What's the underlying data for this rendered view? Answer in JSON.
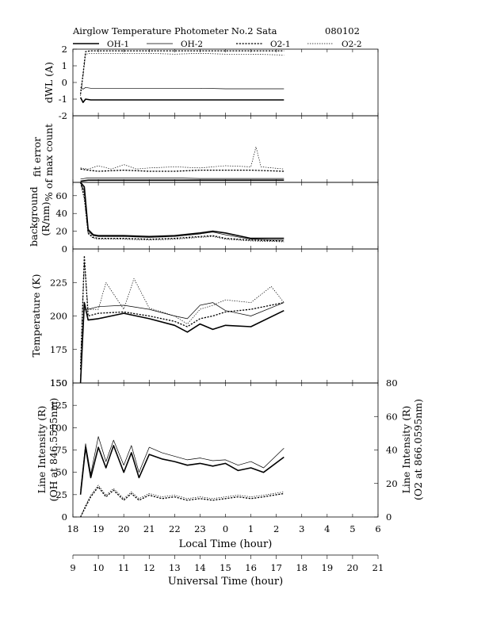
{
  "header": {
    "title": "Airglow Temperature Photometer No.2  Sata",
    "date": "080102"
  },
  "legend": [
    {
      "name": "OH-1",
      "style": "thick-solid"
    },
    {
      "name": "OH-2",
      "style": "thin-solid"
    },
    {
      "name": "O2-1",
      "style": "thick-dotted"
    },
    {
      "name": "O2-2",
      "style": "thin-dotted"
    }
  ],
  "axes": {
    "local_label": "Local Time (hour)",
    "local_ticks": [
      "18",
      "19",
      "20",
      "21",
      "22",
      "23",
      "0",
      "1",
      "2",
      "3",
      "4",
      "5",
      "6"
    ],
    "ut_label": "Universal Time (hour)",
    "ut_ticks": [
      "9",
      "10",
      "11",
      "12",
      "13",
      "14",
      "15",
      "16",
      "17",
      "18",
      "19",
      "20",
      "21"
    ]
  },
  "chart_data": [
    {
      "type": "line",
      "panel": "dwl",
      "ylabel": "dWL (A)",
      "ylim": [
        -2,
        2
      ],
      "yticks": [
        "-2",
        "-1",
        "0",
        "1",
        "2"
      ],
      "series": [
        {
          "name": "OH-1",
          "x": [
            9.3,
            9.4,
            9.5,
            9.7,
            10,
            11,
            12,
            13,
            14,
            15,
            16,
            17.3
          ],
          "y": [
            -0.9,
            -1.2,
            -1.0,
            -1.05,
            -1.05,
            -1.05,
            -1.05,
            -1.05,
            -1.05,
            -1.05,
            -1.05,
            -1.05
          ]
        },
        {
          "name": "OH-2",
          "x": [
            9.3,
            9.4,
            9.5,
            9.7,
            10,
            11,
            12,
            13,
            14,
            15,
            16,
            17.3
          ],
          "y": [
            -0.3,
            -0.4,
            -0.3,
            -0.35,
            -0.35,
            -0.35,
            -0.35,
            -0.35,
            -0.35,
            -0.38,
            -0.38,
            -0.38
          ]
        },
        {
          "name": "O2-1",
          "x": [
            9.3,
            9.4,
            9.5,
            9.7,
            10,
            11,
            12,
            13,
            14,
            15,
            16,
            17.3
          ],
          "y": [
            -0.7,
            0.5,
            1.85,
            1.9,
            1.9,
            1.9,
            1.9,
            1.9,
            1.9,
            1.9,
            1.9,
            1.9
          ]
        },
        {
          "name": "O2-2",
          "x": [
            9.3,
            9.4,
            9.5,
            9.7,
            10,
            11,
            12,
            13,
            14,
            15,
            16,
            17.3
          ],
          "y": [
            -0.8,
            0.4,
            1.7,
            1.75,
            1.75,
            1.75,
            1.75,
            1.7,
            1.75,
            1.7,
            1.7,
            1.65
          ]
        }
      ]
    },
    {
      "type": "line",
      "panel": "fit_error",
      "ylabel": "fit error",
      "ylabel2": "% of max count",
      "ylim": [
        0,
        6
      ],
      "yticks": [],
      "series": [
        {
          "name": "OH-1",
          "x": [
            9.3,
            9.6,
            10,
            11,
            12,
            13,
            14,
            15,
            16,
            17.3
          ],
          "y": [
            0.1,
            0.2,
            0.2,
            0.2,
            0.2,
            0.2,
            0.2,
            0.2,
            0.2,
            0.2
          ]
        },
        {
          "name": "OH-2",
          "x": [
            9.3,
            9.6,
            10,
            11,
            12,
            13,
            14,
            15,
            16,
            17.3
          ],
          "y": [
            0.3,
            0.4,
            0.4,
            0.4,
            0.4,
            0.4,
            0.35,
            0.35,
            0.35,
            0.35
          ]
        },
        {
          "name": "O2-1",
          "x": [
            9.3,
            9.6,
            10,
            11,
            12,
            13,
            14,
            15,
            16,
            17.3
          ],
          "y": [
            1.2,
            1.1,
            1.0,
            1.1,
            1.0,
            1.0,
            1.1,
            1.1,
            1.1,
            1.0
          ]
        },
        {
          "name": "O2-2",
          "x": [
            9.3,
            9.6,
            10,
            10.5,
            11,
            11.5,
            12,
            13,
            14,
            15,
            16,
            16.2,
            16.4,
            17.3
          ],
          "y": [
            1.3,
            1.2,
            1.5,
            1.2,
            1.6,
            1.2,
            1.3,
            1.4,
            1.3,
            1.5,
            1.4,
            3.2,
            1.4,
            1.2
          ]
        }
      ]
    },
    {
      "type": "line",
      "panel": "background",
      "ylabel": "background",
      "ylabel2": "(R/nm)",
      "ylim": [
        0,
        75
      ],
      "yticks": [
        "0",
        "20",
        "40",
        "60"
      ],
      "series": [
        {
          "name": "OH-1",
          "x": [
            9.3,
            9.45,
            9.6,
            9.8,
            10,
            11,
            12,
            13,
            14,
            14.5,
            15,
            16,
            17.3
          ],
          "y": [
            75,
            70,
            22,
            16,
            15,
            15,
            14,
            15,
            18,
            20,
            18,
            12,
            12
          ]
        },
        {
          "name": "OH-2",
          "x": [
            9.3,
            9.45,
            9.6,
            9.8,
            10,
            11,
            12,
            13,
            14,
            14.5,
            15,
            16,
            17.3
          ],
          "y": [
            75,
            65,
            20,
            15,
            14,
            14,
            13,
            14,
            17,
            19,
            16,
            11,
            10
          ]
        },
        {
          "name": "O2-1",
          "x": [
            9.3,
            9.45,
            9.6,
            9.8,
            10,
            11,
            12,
            13,
            14,
            14.5,
            15,
            16,
            17.3
          ],
          "y": [
            75,
            60,
            18,
            13,
            12,
            12,
            11,
            12,
            14,
            15,
            12,
            10,
            9
          ]
        },
        {
          "name": "O2-2",
          "x": [
            9.3,
            9.45,
            9.6,
            9.8,
            10,
            11,
            12,
            13,
            14,
            14.5,
            15,
            16,
            17.3
          ],
          "y": [
            75,
            55,
            17,
            12,
            11,
            11,
            10,
            11,
            13,
            14,
            11,
            9,
            8
          ]
        }
      ]
    },
    {
      "type": "line",
      "panel": "temperature",
      "ylabel": "Temperature (K)",
      "ylim": [
        150,
        250
      ],
      "yticks": [
        "150",
        "175",
        "200",
        "225"
      ],
      "series": [
        {
          "name": "OH-1",
          "x": [
            9.3,
            9.45,
            9.6,
            10,
            11,
            12,
            13,
            13.5,
            14,
            14.5,
            15,
            16,
            17.3
          ],
          "y": [
            150,
            210,
            197,
            198,
            202,
            198,
            193,
            188,
            194,
            190,
            193,
            192,
            204
          ]
        },
        {
          "name": "OH-2",
          "x": [
            9.3,
            9.45,
            9.6,
            10,
            11,
            12,
            13,
            13.5,
            14,
            14.5,
            15,
            16,
            17.3
          ],
          "y": [
            155,
            205,
            205,
            207,
            208,
            205,
            200,
            198,
            208,
            210,
            204,
            200,
            210
          ]
        },
        {
          "name": "O2-1",
          "x": [
            9.3,
            9.45,
            9.6,
            10,
            11,
            12,
            13,
            13.5,
            14,
            14.5,
            15,
            16,
            17.3
          ],
          "y": [
            160,
            245,
            200,
            202,
            203,
            200,
            196,
            192,
            198,
            200,
            203,
            205,
            210
          ]
        },
        {
          "name": "O2-2",
          "x": [
            9.3,
            9.45,
            9.6,
            10,
            10.3,
            11,
            11.4,
            12,
            13,
            13.5,
            14,
            14.5,
            15,
            16,
            16.8,
            17.3
          ],
          "y": [
            165,
            240,
            205,
            205,
            225,
            205,
            228,
            206,
            200,
            194,
            205,
            208,
            212,
            210,
            222,
            210
          ]
        }
      ]
    },
    {
      "type": "line",
      "panel": "line_intensity",
      "ylabel": "Line Intensity (R)",
      "ylabel2": "(OH at 846.5555nm)",
      "ylabel_right": "Line Intensity (R)",
      "ylabel_right2": "(O2 at 866.0595nm)",
      "ylim": [
        0,
        150
      ],
      "yticks": [
        "0",
        "25",
        "50",
        "75",
        "100",
        "125",
        "150"
      ],
      "ylim_right": [
        0,
        80
      ],
      "yticks_right": [
        "0",
        "20",
        "40",
        "60",
        "80"
      ],
      "series": [
        {
          "name": "OH-1",
          "axis": "left",
          "x": [
            9.3,
            9.5,
            9.7,
            10,
            10.3,
            10.6,
            11,
            11.3,
            11.6,
            12,
            12.5,
            13,
            13.5,
            14,
            14.5,
            15,
            15.5,
            16,
            16.5,
            17.3
          ],
          "y": [
            25,
            78,
            44,
            78,
            55,
            80,
            50,
            72,
            44,
            70,
            65,
            62,
            58,
            60,
            57,
            60,
            52,
            55,
            50,
            67
          ]
        },
        {
          "name": "OH-2",
          "axis": "left",
          "x": [
            9.3,
            9.5,
            9.7,
            10,
            10.3,
            10.6,
            11,
            11.3,
            11.6,
            12,
            12.5,
            13,
            13.5,
            14,
            14.5,
            15,
            15.5,
            16,
            16.5,
            17.3
          ],
          "y": [
            30,
            82,
            48,
            90,
            62,
            86,
            58,
            80,
            50,
            78,
            72,
            68,
            64,
            66,
            63,
            64,
            58,
            62,
            55,
            77
          ]
        },
        {
          "name": "O2-1",
          "axis": "right",
          "x": [
            9.3,
            9.5,
            9.7,
            10,
            10.3,
            10.6,
            11,
            11.3,
            11.6,
            12,
            12.5,
            13,
            13.5,
            14,
            14.5,
            15,
            15.5,
            16,
            16.5,
            17.3
          ],
          "y": [
            0,
            6,
            12,
            18,
            12,
            16,
            10,
            14,
            10,
            13,
            11,
            12,
            10,
            11,
            10,
            11,
            12,
            11,
            12,
            14
          ]
        },
        {
          "name": "O2-2",
          "axis": "right",
          "x": [
            9.3,
            9.5,
            9.7,
            10,
            10.3,
            10.6,
            11,
            11.3,
            11.6,
            12,
            12.5,
            13,
            13.5,
            14,
            14.5,
            15,
            15.5,
            16,
            16.5,
            17.3
          ],
          "y": [
            0,
            7,
            13,
            19,
            13,
            17,
            11,
            15,
            11,
            14,
            12,
            13,
            11,
            12,
            11,
            12,
            13,
            12,
            13,
            15
          ]
        }
      ]
    }
  ]
}
